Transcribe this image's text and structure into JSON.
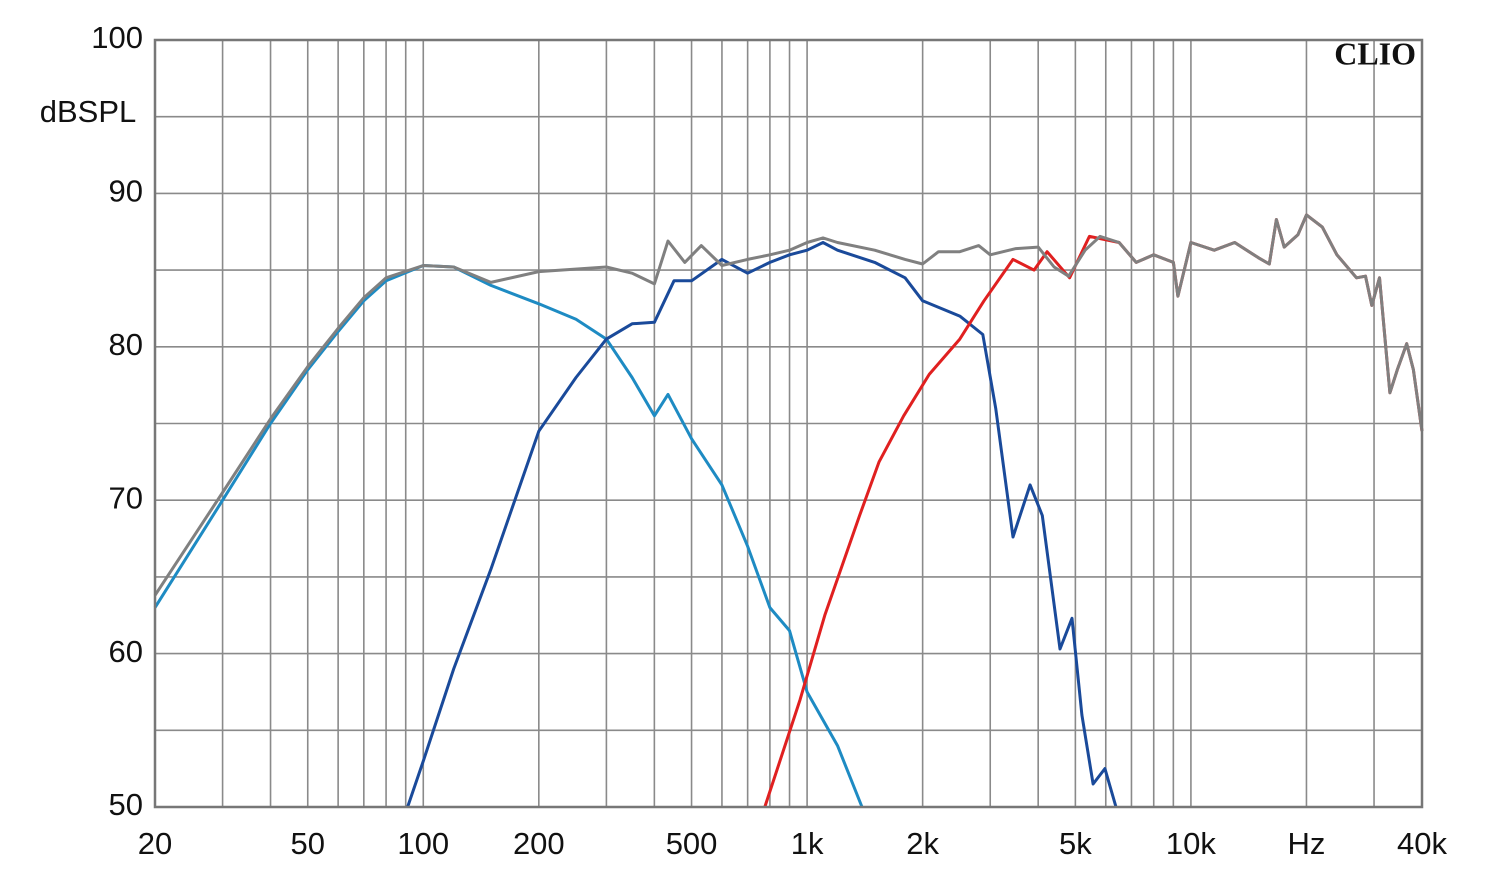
{
  "chart_data": {
    "type": "line",
    "y_label": "dBSPL",
    "watermark": "CLIO",
    "log_x": true,
    "grid": true,
    "xlim": [
      20,
      40000
    ],
    "ylim": [
      50,
      100
    ],
    "xticks": [
      20,
      50,
      100,
      200,
      500,
      {
        "value": 1000,
        "label": "1k"
      },
      {
        "value": 2000,
        "label": "2k"
      },
      {
        "value": 5000,
        "label": "5k"
      },
      {
        "value": 10000,
        "label": "10k"
      },
      {
        "value": 20000,
        "label": "Hz"
      },
      {
        "value": 40000,
        "label": "40k"
      }
    ],
    "xminor": [
      30,
      40,
      60,
      70,
      80,
      90,
      300,
      400,
      600,
      700,
      800,
      900,
      3000,
      4000,
      6000,
      7000,
      8000,
      9000,
      30000
    ],
    "yticks": [
      50,
      60,
      70,
      80,
      90,
      100
    ],
    "yminor": [
      55,
      65,
      75,
      85,
      95
    ],
    "series": [
      {
        "color": "#1e8bc3",
        "x": [
          20,
          30,
          40,
          50,
          60,
          70,
          80,
          100,
          120,
          150,
          200,
          250,
          300,
          350,
          400,
          434,
          500,
          600,
          700,
          800,
          900,
          1000,
          1200,
          1390
        ],
        "values": [
          63,
          70,
          75,
          78.5,
          81,
          83,
          84.3,
          85.3,
          85.2,
          84,
          82.8,
          81.8,
          80.5,
          78,
          75.5,
          76.9,
          74,
          71,
          67,
          63,
          61.5,
          57.5,
          54,
          50
        ]
      },
      {
        "color": "#1a4a9a",
        "x": [
          91,
          100,
          120,
          150,
          200,
          250,
          300,
          350,
          400,
          450,
          500,
          600,
          700,
          800,
          900,
          1000,
          1100,
          1200,
          1500,
          1800,
          2000,
          2500,
          2870,
          3100,
          3440,
          3810,
          4100,
          4560,
          4900,
          5200,
          5560,
          5970,
          6380
        ],
        "values": [
          50,
          53,
          59,
          65.5,
          74.5,
          78,
          80.5,
          81.5,
          81.6,
          84.3,
          84.3,
          85.7,
          84.8,
          85.5,
          86,
          86.3,
          86.8,
          86.3,
          85.5,
          84.5,
          83,
          82,
          80.8,
          76,
          67.6,
          71,
          69,
          60.3,
          62.3,
          56,
          51.5,
          52.5,
          50
        ]
      },
      {
        "color": "#e02020",
        "x": [
          776,
          959,
          1112,
          1370,
          1540,
          1785,
          2080,
          2500,
          2890,
          3440,
          3900,
          4220,
          4830,
          5440,
          6500,
          7200,
          8000,
          9000,
          9250,
          10000,
          11500,
          13000,
          15000,
          16000,
          16700,
          17500,
          19000,
          20000,
          22000,
          24000,
          27000,
          28500,
          29600,
          31000,
          33000,
          34500,
          36500,
          38000,
          40000
        ],
        "values": [
          50,
          57,
          62.5,
          69,
          72.5,
          75.5,
          78.2,
          80.5,
          83,
          85.7,
          85,
          86.2,
          84.5,
          87.2,
          86.8,
          85.5,
          86,
          85.5,
          83.3,
          86.8,
          86.3,
          86.8,
          85.8,
          85.4,
          88.3,
          86.5,
          87.3,
          88.6,
          87.8,
          86,
          84.5,
          84.6,
          82.7,
          84.5,
          77,
          78.5,
          80.2,
          78.5,
          74.5
        ]
      },
      {
        "color": "#808080",
        "x": [
          20,
          30,
          40,
          50,
          60,
          70,
          80,
          100,
          120,
          150,
          200,
          300,
          350,
          400,
          434,
          480,
          530,
          600,
          700,
          800,
          900,
          1000,
          1100,
          1200,
          1500,
          1800,
          2000,
          2200,
          2500,
          2800,
          3000,
          3500,
          4000,
          4400,
          4800,
          5300,
          5800,
          6500,
          7200,
          8000,
          9000,
          9250,
          10000,
          11500,
          13000,
          15000,
          16000,
          16700,
          17500,
          19000,
          20000,
          22000,
          24000,
          27000,
          28500,
          29600,
          31000,
          33000,
          34500,
          36500,
          38000,
          40000
        ],
        "values": [
          63.8,
          70.5,
          75.3,
          78.7,
          81.2,
          83.2,
          84.5,
          85.3,
          85.2,
          84.2,
          84.9,
          85.2,
          84.8,
          84.1,
          86.9,
          85.5,
          86.6,
          85.3,
          85.7,
          86,
          86.3,
          86.8,
          87.1,
          86.8,
          86.3,
          85.7,
          85.4,
          86.2,
          86.2,
          86.6,
          86,
          86.4,
          86.5,
          85.2,
          84.6,
          86.3,
          87.2,
          86.8,
          85.5,
          86,
          85.5,
          83.3,
          86.8,
          86.3,
          86.8,
          85.8,
          85.4,
          88.3,
          86.5,
          87.3,
          88.6,
          87.8,
          86,
          84.5,
          84.6,
          82.7,
          84.5,
          77,
          78.5,
          80.2,
          78.5,
          74.5
        ]
      }
    ]
  }
}
